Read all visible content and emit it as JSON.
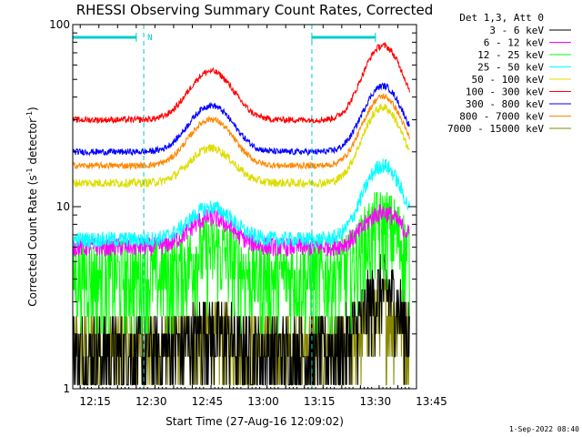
{
  "chart_data": {
    "type": "line",
    "title": "RHESSI Observing Summary Count Rates, Corrected",
    "xlabel": "Start Time (27-Aug-16 12:09:02)",
    "ylabel_main": "Corrected Count Rate (s",
    "ylabel_sup1": "-1",
    "ylabel_mid": " detector",
    "ylabel_sup2": "-1",
    "ylabel_end": ")",
    "y_scale": "log",
    "ylim": [
      1,
      100
    ],
    "y_tick_labels": [
      "100",
      "10",
      "1"
    ],
    "x_range_min": [
      8,
      100
    ],
    "x_tick_labels": [
      "12:15",
      "12:30",
      "12:45",
      "13:00",
      "13:15",
      "13:30",
      "13:45"
    ],
    "x_tick_min": [
      14,
      29,
      44,
      59,
      74,
      89,
      104
    ],
    "legend_title": "Det 1,3, Att 0",
    "legend_placement": "top-right outside",
    "timestamp": "1-Sep-2022 08:40",
    "night_markers_min": [
      27,
      72,
      100
    ],
    "saa_bars_min": [
      [
        8,
        25
      ],
      [
        72,
        89
      ]
    ],
    "saa_label": "N",
    "saa_label_min": 28,
    "series": [
      {
        "name": "3 - 6 keV",
        "color": "#000000",
        "baseline_counts": 1.6,
        "noise": 0.35,
        "levels": "mostly 1-4 s^-1, peaks ~4 at 13:31"
      },
      {
        "name": "6 - 12 keV",
        "color": "#ff00ff",
        "baseline_counts": 6,
        "noise": 0.12,
        "levels": "~6 s^-1 quiet, ~9 s^-1 at 12:47 and 13:31"
      },
      {
        "name": "12 - 25 keV",
        "color": "#00ff00",
        "baseline_counts": 4.2,
        "noise": 0.17,
        "levels": "~4 s^-1 quiet, ~8 s^-1 at 13:31"
      },
      {
        "name": "25 - 50 keV",
        "color": "#00ffff",
        "baseline_counts": 6.6,
        "noise": 0.1,
        "levels": "~6.5 s^-1 quiet, ~10 s^-1 at 12:45, ~17 s^-1 at 13:31"
      },
      {
        "name": "50 - 100 keV",
        "color": "#dddd00",
        "baseline_counts": 13.5,
        "noise": 0.055,
        "levels": "~13 s^-1 quiet, ~21 s^-1 at 12:45, ~35 s^-1 at 13:31"
      },
      {
        "name": "100 - 300 keV",
        "color": "#ff0000",
        "baseline_counts": 30,
        "noise": 0.04,
        "levels": "~30 s^-1 quiet, ~55 s^-1 at 12:45, ~75 s^-1 at 13:32"
      },
      {
        "name": "300 - 800 keV",
        "color": "#0000ff",
        "baseline_counts": 20,
        "noise": 0.04,
        "levels": "~20 s^-1 quiet, ~35 s^-1 at 12:45, ~45 s^-1 at 13:32"
      },
      {
        "name": "800 - 7000 keV",
        "color": "#ff8800",
        "baseline_counts": 16.8,
        "noise": 0.04,
        "levels": "~16.5 s^-1 quiet, ~30 s^-1 at 12:45, ~40 s^-1 at 13:32"
      },
      {
        "name": "7000 - 15000 keV",
        "color": "#888800",
        "baseline_counts": 1.7,
        "noise": 0.35,
        "levels": "mostly 1-3 s^-1"
      }
    ]
  }
}
